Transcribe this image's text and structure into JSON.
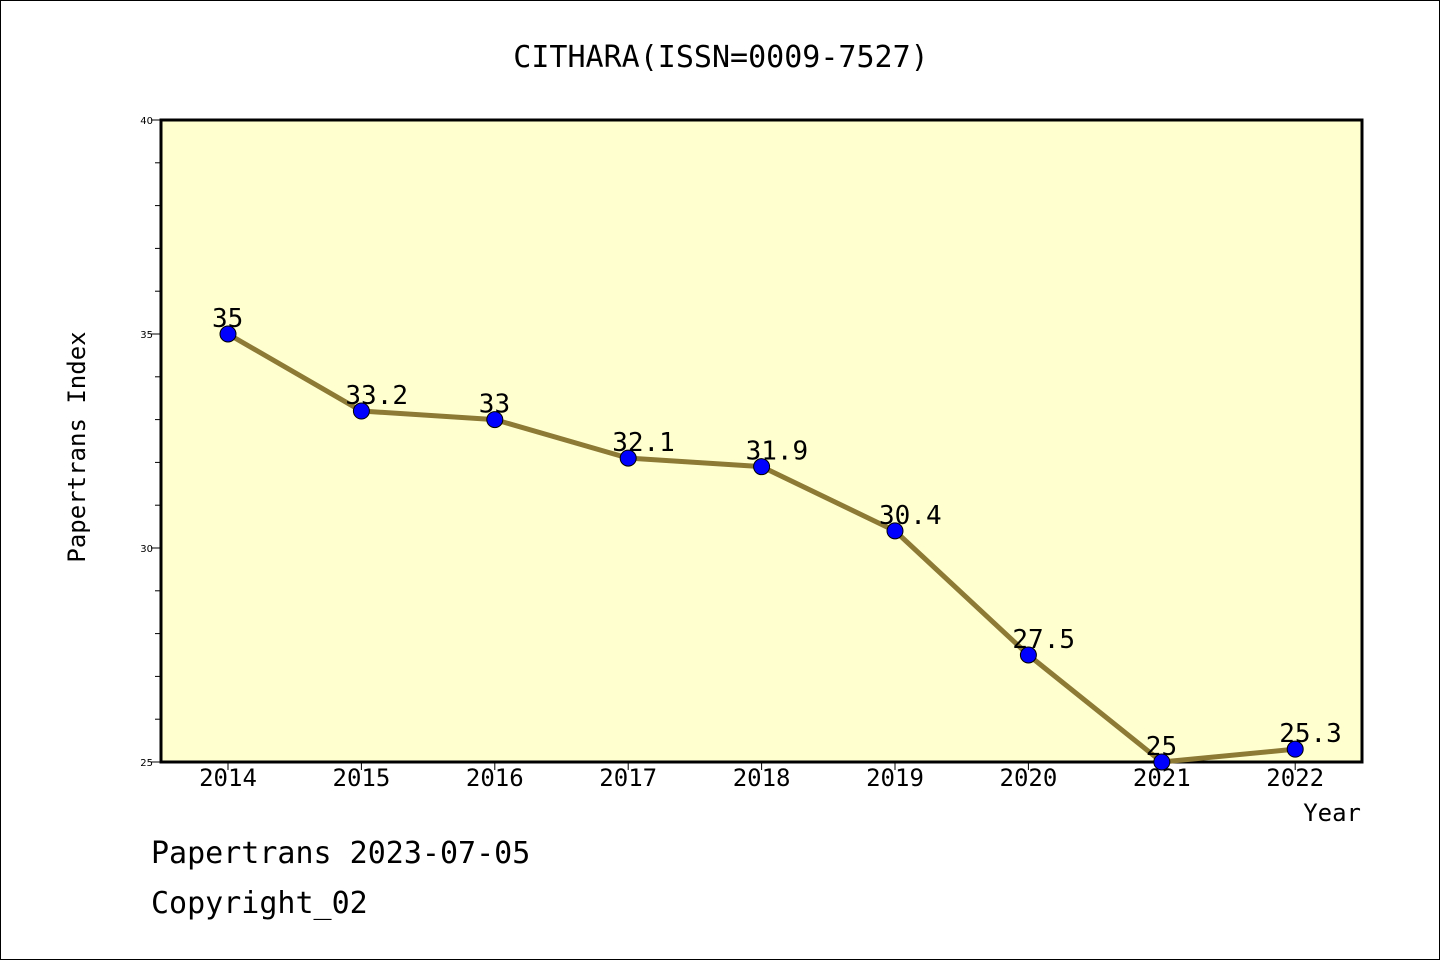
{
  "chart_data": {
    "type": "line",
    "title": "CITHARA(ISSN=0009-7527)",
    "xlabel": "Year",
    "ylabel": "Papertrans Index",
    "categories": [
      "2014",
      "2015",
      "2016",
      "2017",
      "2018",
      "2019",
      "2020",
      "2021",
      "2022"
    ],
    "series": [
      {
        "name": "Papertrans Index",
        "values": [
          35,
          33.2,
          33,
          32.1,
          31.9,
          30.4,
          27.5,
          25,
          25.3
        ],
        "labels": [
          "35",
          "33.2",
          "33",
          "32.1",
          "31.9",
          "30.4",
          "27.5",
          "25",
          "25.3"
        ]
      }
    ],
    "ylim": [
      25,
      40
    ],
    "yticks": [
      "25",
      "30",
      "35",
      "40"
    ],
    "grid": false,
    "colors": {
      "plot_bg": "#ffffd0",
      "line": "#8c7a35",
      "marker": "#0000ff"
    }
  },
  "footer": {
    "line1": "Papertrans 2023-07-05",
    "line2": "Copyright_02"
  }
}
